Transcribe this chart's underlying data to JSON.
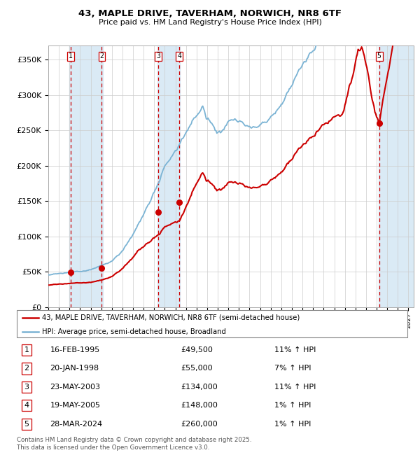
{
  "title_line1": "43, MAPLE DRIVE, TAVERHAM, NORWICH, NR8 6TF",
  "title_line2": "Price paid vs. HM Land Registry's House Price Index (HPI)",
  "ylabel_ticks": [
    "£0",
    "£50K",
    "£100K",
    "£150K",
    "£200K",
    "£250K",
    "£300K",
    "£350K"
  ],
  "ylabel_values": [
    0,
    50000,
    100000,
    150000,
    200000,
    250000,
    300000,
    350000
  ],
  "ylim": [
    0,
    370000
  ],
  "xlim_start": 1993.0,
  "xlim_end": 2027.5,
  "sale_dates": [
    1995.12,
    1998.05,
    2003.38,
    2005.38,
    2024.24
  ],
  "sale_prices": [
    49500,
    55000,
    134000,
    148000,
    260000
  ],
  "sale_labels": [
    "1",
    "2",
    "3",
    "4",
    "5"
  ],
  "sale_info": [
    {
      "label": "1",
      "date": "16-FEB-1995",
      "price": "£49,500",
      "pct": "11% ↑ HPI"
    },
    {
      "label": "2",
      "date": "20-JAN-1998",
      "price": "£55,000",
      "pct": "7% ↑ HPI"
    },
    {
      "label": "3",
      "date": "23-MAY-2003",
      "price": "£134,000",
      "pct": "11% ↑ HPI"
    },
    {
      "label": "4",
      "date": "19-MAY-2005",
      "price": "£148,000",
      "pct": "1% ↑ HPI"
    },
    {
      "label": "5",
      "date": "28-MAR-2024",
      "price": "£260,000",
      "pct": "1% ↑ HPI"
    }
  ],
  "hpi_line_color": "#7ab3d4",
  "price_line_color": "#cc0000",
  "sale_marker_color": "#cc0000",
  "dashed_line_color": "#cc0000",
  "shade_color": "#daeaf5",
  "background_color": "#ffffff",
  "grid_color": "#cccccc",
  "legend_line1": "43, MAPLE DRIVE, TAVERHAM, NORWICH, NR8 6TF (semi-detached house)",
  "legend_line2": "HPI: Average price, semi-detached house, Broadland",
  "footer": "Contains HM Land Registry data © Crown copyright and database right 2025.\nThis data is licensed under the Open Government Licence v3.0."
}
